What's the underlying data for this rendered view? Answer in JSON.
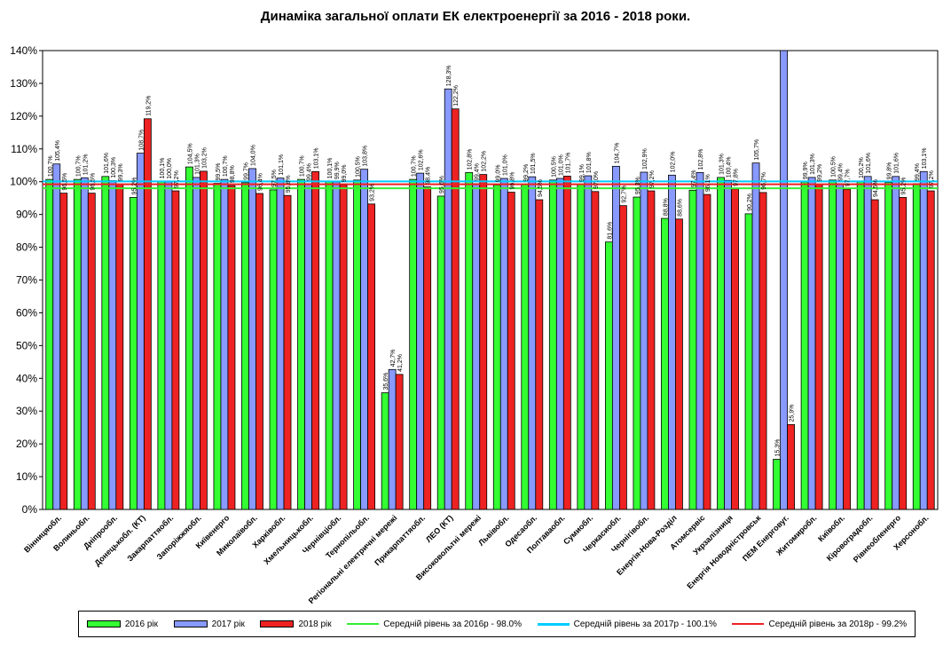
{
  "chart_data": {
    "type": "bar",
    "title": "Динаміка загальної оплати ЕК електроенергії за 2016 - 2018 роки.",
    "xlabel": "",
    "ylabel": "",
    "ylim": [
      0,
      140
    ],
    "y_unit": "%",
    "y_ticks": [
      "0%",
      "10%",
      "20%",
      "30%",
      "40%",
      "50%",
      "60%",
      "70%",
      "80%",
      "90%",
      "100%",
      "110%",
      "120%",
      "130%",
      "140%"
    ],
    "grid": false,
    "legend_position": "bottom",
    "categories": [
      "Вінницяобл.",
      "Волиньобл.",
      "Дніпрообл.",
      "Донецькобл. (КТ)",
      "Закарпаттяобл.",
      "Запоріжжяобл.",
      "Київенерго",
      "Миколаївобл.",
      "Харківобл.",
      "Хмельницькобл.",
      "Чернівціобл.",
      "Тернопільобл.",
      "Регіональні електричні мережі",
      "Прикарпаттяобл.",
      "ЛЕО (КТ)",
      "Високовольтні мережі",
      "Львівобл.",
      "Одесаобл.",
      "Полтаваобл.",
      "Сумиобл.",
      "Черкасиобл.",
      "Чернігівобл.",
      "Енергія-Нова-Розділ",
      "Атомсервіс",
      "Укрзалізниця",
      "Енергія Новодністровськ",
      "ПЕМ Енерговуг.",
      "Житомиробл.",
      "Київобл.",
      "Кіровоградобл.",
      "Рівнеобленерго",
      "Херсонобл."
    ],
    "series": [
      {
        "name": "2016 рік",
        "color": "#33ff33",
        "values": [
          100.7,
          100.7,
          101.6,
          95.2,
          100.1,
          104.5,
          99.5,
          99.7,
          97.5,
          100.7,
          100.1,
          100.5,
          35.6,
          100.7,
          95.6,
          102.8,
          99.0,
          99.2,
          100.5,
          99.1,
          81.6,
          95.3,
          88.8,
          97.4,
          101.3,
          90.2,
          15.3,
          99.9,
          100.5,
          100.2,
          99.8,
          99.4
        ],
        "labels": [
          "100,7%",
          "100,7%",
          "101,6%",
          "95,2%",
          "100,1%",
          "104,5%",
          "99,5%",
          "99,7%",
          "97,5%",
          "100,7%",
          "100,1%",
          "100,5%",
          "35,6%",
          "100,7%",
          "95,6%",
          "102,8%",
          "99,0%",
          "99,2%",
          "100,5%",
          "99,1%",
          "81,6%",
          "95,3%",
          "88,8%",
          "97,4%",
          "101,3%",
          "90,2%",
          "15,3%",
          "99,9%",
          "100,5%",
          "100,2%",
          "99,8%",
          "99,4%"
        ]
      },
      {
        "name": "2017 рік",
        "color": "#8899ff",
        "values": [
          105.4,
          101.2,
          100.3,
          108.7,
          100.0,
          101.3,
          100.7,
          104.0,
          101.1,
          99.4,
          99.9,
          103.8,
          42.7,
          102.6,
          128.3,
          99.4,
          101.0,
          101.5,
          101.0,
          101.8,
          104.7,
          102.9,
          102.0,
          102.8,
          100.4,
          105.7,
          140.0,
          101.3,
          99.4,
          101.6,
          101.6,
          103.1
        ],
        "labels": [
          "105,4%",
          "101,2%",
          "100,3%",
          "108,7%",
          "100,0%",
          "101,3%",
          "100,7%",
          "104,0%",
          "101,1%",
          "99,4%",
          "99,9%",
          "103,8%",
          "42,7%",
          "102,6%",
          "128,3%",
          "99,4%",
          "101,0%",
          "101,5%",
          "101,0%",
          "101,8%",
          "104,7%",
          "102,9%",
          "102,0%",
          "102,8%",
          "100,4%",
          "105,7%",
          "",
          "101,3%",
          "99,4%",
          "101,6%",
          "101,6%",
          "103,1%"
        ]
      },
      {
        "name": "2018 рік",
        "color": "#ee2222",
        "values": [
          96.5,
          96.5,
          99.3,
          119.2,
          97.2,
          103.2,
          98.8,
          96.4,
          95.8,
          103.1,
          99.0,
          93.2,
          41.2,
          98.4,
          122.2,
          102.2,
          96.8,
          94.5,
          101.7,
          97.0,
          92.7,
          97.2,
          88.6,
          96.1,
          97.8,
          96.7,
          25.9,
          99.2,
          97.7,
          94.5,
          95.2,
          97.2
        ],
        "labels": [
          "96,5%",
          "96,5%",
          "99,3%",
          "119,2%",
          "97,2%",
          "103,2%",
          "98,8%",
          "96,4%",
          "95,8%",
          "103,1%",
          "99,0%",
          "93,2%",
          "41,2%",
          "98,4%",
          "122,2%",
          "102,2%",
          "96,8%",
          "94,5%",
          "101,7%",
          "97,0%",
          "92,7%",
          "97,2%",
          "88,6%",
          "96,1%",
          "97,8%",
          "96,7%",
          "25,9%",
          "99,2%",
          "97,7%",
          "94,5%",
          "95,2%",
          "97,2%"
        ]
      }
    ],
    "reference_lines": [
      {
        "name": "Середній рівень за 2016р - 98.0%",
        "value": 98.0,
        "color": "#33ee33"
      },
      {
        "name": "Середній рівень за 2017р - 100.1%",
        "value": 100.1,
        "color": "#00ccff"
      },
      {
        "name": "Середній рівень за 2018р - 99.2%",
        "value": 99.2,
        "color": "#ee2222"
      }
    ]
  }
}
